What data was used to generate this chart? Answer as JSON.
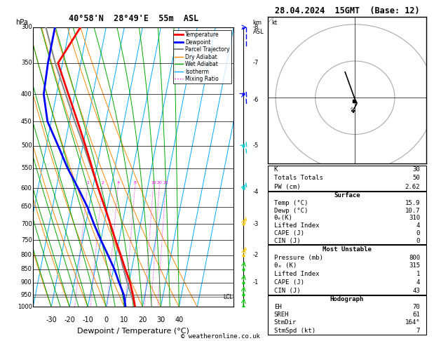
{
  "title_left": "40°58'N  28°49'E  55m  ASL",
  "title_right": "28.04.2024  15GMT  (Base: 12)",
  "xlabel": "Dewpoint / Temperature (°C)",
  "pressure_levels": [
    300,
    350,
    400,
    450,
    500,
    550,
    600,
    650,
    700,
    750,
    800,
    850,
    900,
    950,
    1000
  ],
  "temp_profile": {
    "pressure": [
      1000,
      950,
      900,
      850,
      800,
      750,
      700,
      650,
      600,
      550,
      500,
      450,
      400,
      350,
      300
    ],
    "temp": [
      15.9,
      13.5,
      10.5,
      6.5,
      2.5,
      -2.0,
      -6.5,
      -11.5,
      -17.0,
      -22.5,
      -28.5,
      -35.5,
      -43.5,
      -52.5,
      -44.0
    ]
  },
  "dewp_profile": {
    "pressure": [
      1000,
      950,
      900,
      850,
      800,
      750,
      700,
      650,
      600,
      550,
      500,
      450,
      400,
      350,
      300
    ],
    "dewp": [
      10.7,
      8.5,
      4.5,
      0.5,
      -4.5,
      -10.0,
      -15.5,
      -21.0,
      -28.0,
      -36.0,
      -43.5,
      -52.0,
      -57.0,
      -58.0,
      -58.0
    ]
  },
  "parcel_profile": {
    "pressure": [
      1000,
      950,
      900,
      850,
      800,
      750,
      700,
      650,
      600,
      550,
      500,
      450,
      400,
      350,
      300
    ],
    "temp": [
      15.9,
      12.5,
      9.0,
      5.5,
      2.0,
      -2.0,
      -6.5,
      -11.5,
      -17.0,
      -23.0,
      -29.5,
      -37.0,
      -45.0,
      -54.0,
      -63.0
    ]
  },
  "lcl_pressure": 958,
  "mixing_ratio_lines": [
    1,
    2,
    4,
    8,
    16,
    20,
    25
  ],
  "temp_min": -40,
  "temp_max": 40,
  "p_min": 300,
  "p_max": 1000,
  "skew_degC_per_decade": 45,
  "colors": {
    "temperature": "#ff0000",
    "dewpoint": "#0000ff",
    "parcel": "#888888",
    "dry_adiabat": "#ff8800",
    "wet_adiabat": "#00aa00",
    "isotherm": "#00aaff",
    "mixing_ratio": "#ff00ff",
    "background": "#ffffff",
    "grid": "#000000"
  },
  "km_labels": {
    "1": 900,
    "2": 800,
    "3": 700,
    "4": 610,
    "5": 500,
    "6": 410,
    "7": 350,
    "8": 300
  },
  "wind_barbs": {
    "pressure": [
      1000,
      950,
      900,
      850,
      800,
      700,
      600,
      500,
      400,
      300
    ],
    "speed_kt": [
      5,
      7,
      8,
      9,
      11,
      14,
      16,
      22,
      28,
      35
    ],
    "dir_deg": [
      200,
      200,
      210,
      210,
      220,
      230,
      240,
      250,
      260,
      270
    ],
    "colors": [
      "#00cc00",
      "#00cc00",
      "#00cc00",
      "#00cc00",
      "#ffcc00",
      "#ffcc00",
      "#00cccc",
      "#00cccc",
      "#0000ff",
      "#0000ff"
    ]
  },
  "hodograph_u": [
    1.5,
    2.0,
    2.5,
    2.0,
    1.5,
    1.0,
    0.5,
    -0.5
  ],
  "hodograph_v": [
    4.5,
    5.5,
    6.5,
    7.5,
    9.0,
    10.5,
    12.0,
    15.0
  ],
  "hodo_storm_u": 1.8,
  "hodo_storm_v": 7.0,
  "stats": {
    "K": 30,
    "Totals_Totals": 50,
    "PW_cm": 2.62,
    "surf_temp": 15.9,
    "surf_dewp": 10.7,
    "surf_theta_e": 310,
    "surf_lifted_index": 4,
    "surf_cape": 0,
    "surf_cin": 0,
    "mu_pressure": 800,
    "mu_theta_e": 315,
    "mu_lifted_index": 1,
    "mu_cape": 4,
    "mu_cin": 43,
    "EH": 70,
    "SREH": 61,
    "StmDir": 164,
    "StmSpd_kt": 7
  },
  "legend_items": [
    {
      "label": "Temperature",
      "color": "#ff0000",
      "lw": 2,
      "ls": "-"
    },
    {
      "label": "Dewpoint",
      "color": "#0000ff",
      "lw": 2,
      "ls": "-"
    },
    {
      "label": "Parcel Trajectory",
      "color": "#888888",
      "lw": 1.5,
      "ls": "-"
    },
    {
      "label": "Dry Adiabat",
      "color": "#ff8800",
      "lw": 1,
      "ls": "-"
    },
    {
      "label": "Wet Adiabat",
      "color": "#00aa00",
      "lw": 1,
      "ls": "-"
    },
    {
      "label": "Isotherm",
      "color": "#00aaff",
      "lw": 1,
      "ls": "-"
    },
    {
      "label": "Mixing Ratio",
      "color": "#ff00ff",
      "lw": 1,
      "ls": ":"
    }
  ]
}
